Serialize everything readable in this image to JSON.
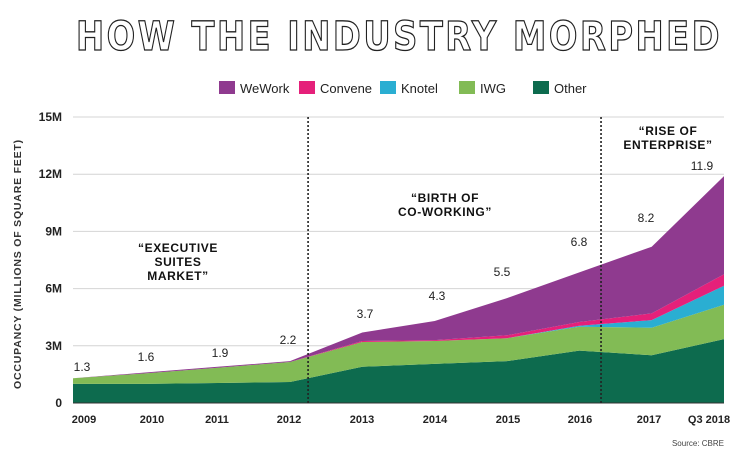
{
  "title": "HOW THE INDUSTRY MORPHED",
  "source": "Source: CBRE",
  "chart_data": {
    "type": "area",
    "stacked": true,
    "ylabel": "OCCUPANCY (MILLIONS OF SQUARE FEET)",
    "ylim": [
      0,
      15
    ],
    "y_ticks": [
      {
        "value": 0,
        "label": "0"
      },
      {
        "value": 3,
        "label": "3M"
      },
      {
        "value": 6,
        "label": "6M"
      },
      {
        "value": 9,
        "label": "9M"
      },
      {
        "value": 12,
        "label": "12M"
      },
      {
        "value": 15,
        "label": "15M"
      }
    ],
    "x_tick_labels": [
      "2009",
      "2010",
      "2011",
      "2012",
      "2013",
      "2014",
      "2015",
      "2016",
      "2017",
      "Q3 2018"
    ],
    "legend_position": "top",
    "series": [
      {
        "name": "Other",
        "color": "#0d6b4e",
        "values": [
          1.0,
          1.0,
          1.05,
          1.1,
          1.9,
          2.05,
          2.2,
          2.75,
          2.5,
          3.35
        ]
      },
      {
        "name": "IWG",
        "color": "#82bb55",
        "values": [
          0.3,
          0.55,
          0.8,
          1.05,
          1.3,
          1.2,
          1.2,
          1.25,
          1.45,
          1.8
        ]
      },
      {
        "name": "Knotel",
        "color": "#2aaed2",
        "values": [
          0,
          0,
          0,
          0,
          0,
          0,
          0,
          0.05,
          0.4,
          1.0
        ]
      },
      {
        "name": "Convene",
        "color": "#e5207a",
        "values": [
          0,
          0,
          0,
          0,
          0.05,
          0.05,
          0.15,
          0.2,
          0.35,
          0.6
        ]
      },
      {
        "name": "WeWork",
        "color": "#8f3a8f",
        "values": [
          0,
          0.05,
          0.05,
          0.05,
          0.45,
          1.0,
          1.95,
          2.6,
          3.5,
          5.15
        ]
      }
    ],
    "legend_order": [
      "WeWork",
      "Convene",
      "Knotel",
      "IWG",
      "Other"
    ],
    "data_labels": [
      {
        "x": "2009",
        "text": "1.3"
      },
      {
        "x": "2010",
        "text": "1.6"
      },
      {
        "x": "2011",
        "text": "1.9"
      },
      {
        "x": "2012",
        "text": "2.2"
      },
      {
        "x": "2013",
        "text": "3.7"
      },
      {
        "x": "2014",
        "text": "4.3"
      },
      {
        "x": "2015",
        "text": "5.5"
      },
      {
        "x": "2016",
        "text": "6.8"
      },
      {
        "x": "2017",
        "text": "8.2"
      },
      {
        "x": "Q3 2018",
        "text": "11.9"
      }
    ],
    "dividers": [
      {
        "x_index": 3.25
      },
      {
        "x_index": 7.3
      }
    ],
    "annotations": [
      {
        "lines": [
          "“EXECUTIVE",
          "SUITES",
          "MARKET”"
        ]
      },
      {
        "lines": [
          "“BIRTH OF",
          "CO-WORKING”"
        ]
      },
      {
        "lines": [
          "“RISE OF",
          "ENTERPRISE”"
        ]
      }
    ],
    "grid": "horizontal"
  }
}
